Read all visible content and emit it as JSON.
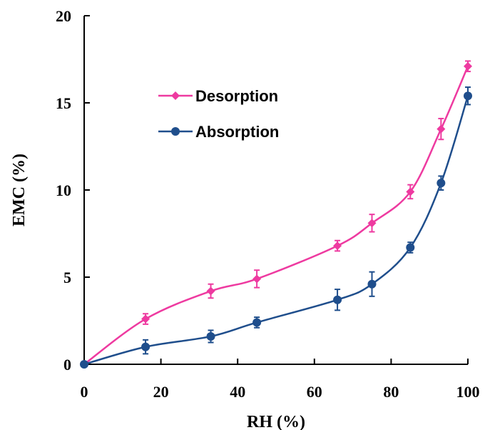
{
  "chart_data": {
    "type": "line",
    "xlabel": "RH (%)",
    "ylabel": "EMC (%)",
    "xlim": [
      0,
      100
    ],
    "ylim": [
      0,
      20
    ],
    "xticks": [
      "0",
      "20",
      "40",
      "60",
      "80",
      "100"
    ],
    "yticks": [
      "0",
      "5",
      "10",
      "15",
      "20"
    ],
    "grid": false,
    "legend_position": "top-left",
    "series": [
      {
        "name": "Desorption",
        "color": "#ee3aa0",
        "marker": "diamond",
        "x": [
          0,
          16,
          33,
          45,
          66,
          75,
          85,
          93,
          100
        ],
        "y": [
          0,
          2.6,
          4.2,
          4.9,
          6.8,
          8.1,
          9.9,
          13.5,
          17.1
        ],
        "error": [
          0,
          0.3,
          0.4,
          0.5,
          0.3,
          0.5,
          0.4,
          0.6,
          0.3
        ]
      },
      {
        "name": "Absorption",
        "color": "#1f4e8c",
        "marker": "circle",
        "x": [
          0,
          16,
          33,
          45,
          66,
          75,
          85,
          93,
          100
        ],
        "y": [
          0,
          1.0,
          1.6,
          2.4,
          3.7,
          4.6,
          6.7,
          10.4,
          15.4
        ],
        "error": [
          0,
          0.4,
          0.35,
          0.3,
          0.6,
          0.7,
          0.3,
          0.4,
          0.5
        ]
      }
    ]
  }
}
